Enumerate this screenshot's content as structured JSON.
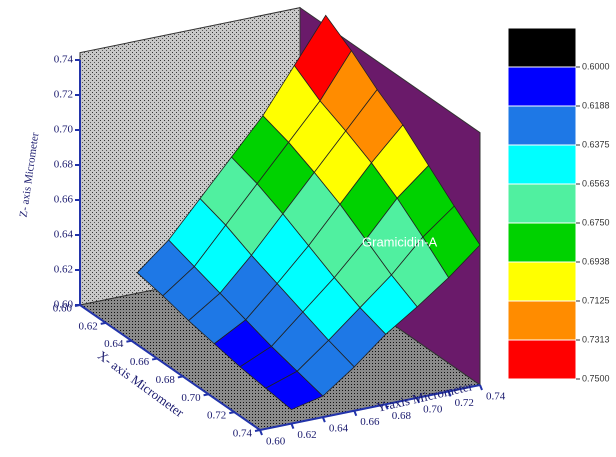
{
  "chart_data": {
    "type": "surface3d",
    "zlabel": "Z- axis Micrometer",
    "xlabel": "X- axis Micrometer",
    "ylabel": "Y-axis Micrometer",
    "annotation": "Gramicidin-A",
    "xlim": [
      0.6,
      0.74
    ],
    "ylim": [
      0.6,
      0.74
    ],
    "zlim": [
      0.6,
      0.74
    ],
    "xticks": [
      {
        "value": 0.6,
        "label": "0.60"
      },
      0.62,
      0.64,
      0.66,
      0.68,
      {
        "value": 0.7,
        "label": "0.70"
      },
      0.72,
      0.74
    ],
    "yticks": [
      {
        "value": 0.6,
        "label": "0.60"
      },
      0.62,
      0.64,
      0.66,
      0.68,
      {
        "value": 0.7,
        "label": "0.70"
      },
      0.72,
      0.74
    ],
    "zticks": [
      {
        "value": 0.6,
        "label": "0.60"
      },
      0.62,
      0.64,
      0.66,
      0.68,
      {
        "value": 0.7,
        "label": "0.70"
      },
      0.72,
      0.74
    ],
    "surface_x": [
      0.62,
      0.64,
      0.66,
      0.68,
      0.7,
      0.72,
      0.74
    ],
    "surface_y": [
      0.62,
      0.64,
      0.66,
      0.68,
      0.7,
      0.72,
      0.74
    ],
    "z": [
      [
        0.625,
        0.64,
        0.66,
        0.68,
        0.7,
        0.725,
        0.75
      ],
      [
        0.622,
        0.635,
        0.655,
        0.675,
        0.695,
        0.715,
        0.74
      ],
      [
        0.618,
        0.63,
        0.648,
        0.668,
        0.688,
        0.708,
        0.728
      ],
      [
        0.615,
        0.625,
        0.642,
        0.66,
        0.68,
        0.7,
        0.718
      ],
      [
        0.612,
        0.62,
        0.636,
        0.652,
        0.67,
        0.69,
        0.705
      ],
      [
        0.61,
        0.616,
        0.63,
        0.645,
        0.66,
        0.678,
        0.692
      ],
      [
        0.608,
        0.612,
        0.625,
        0.64,
        0.652,
        0.665,
        0.68
      ]
    ],
    "colorbar": {
      "levels": [
        {
          "value": 0.6,
          "label": "0.6000"
        },
        {
          "value": 0.6188,
          "label": "0.6188"
        },
        {
          "value": 0.6375,
          "label": "0.6375"
        },
        {
          "value": 0.6563,
          "label": "0.6563"
        },
        {
          "value": 0.675,
          "label": "0.6750"
        },
        {
          "value": 0.6938,
          "label": "0.6938"
        },
        {
          "value": 0.7125,
          "label": "0.7125"
        },
        {
          "value": 0.7313,
          "label": "0.7313"
        },
        {
          "value": 0.75,
          "label": "0.7500"
        }
      ],
      "colors": [
        "#000000",
        "#0000ff",
        "#1e78e6",
        "#00ffff",
        "#50f0a0",
        "#00d200",
        "#ffff00",
        "#ff8c00",
        "#ff0000"
      ]
    }
  }
}
